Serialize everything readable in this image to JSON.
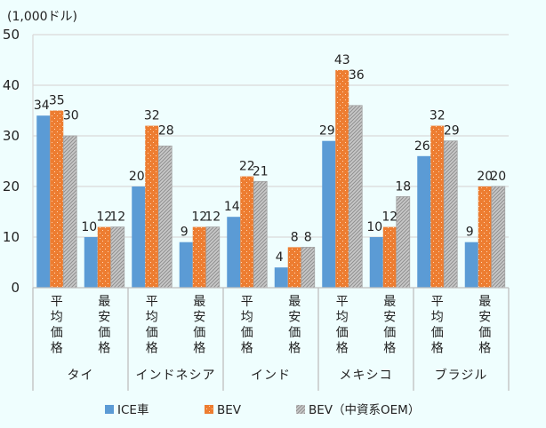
{
  "chart_data": {
    "type": "bar",
    "title": "",
    "unit_label": "(1,000ドル)",
    "xlabel": "",
    "ylabel": "",
    "ylim": [
      0,
      50
    ],
    "yticks": [
      0,
      10,
      20,
      30,
      40,
      50
    ],
    "grid": true,
    "legend_position": "bottom",
    "groups": [
      {
        "name": "タイ",
        "categories": [
          "平均価格",
          "最安価格"
        ]
      },
      {
        "name": "インドネシア",
        "categories": [
          "平均価格",
          "最安価格"
        ]
      },
      {
        "name": "インド",
        "categories": [
          "平均価格",
          "最安価格"
        ]
      },
      {
        "name": "メキシコ",
        "categories": [
          "平均価格",
          "最安価格"
        ]
      },
      {
        "name": "ブラジル",
        "categories": [
          "平均価格",
          "最安価格"
        ]
      }
    ],
    "categories": [
      "タイ 平均価格",
      "タイ 最安価格",
      "インドネシア 平均価格",
      "インドネシア 最安価格",
      "インド 平均価格",
      "インド 最安価格",
      "メキシコ 平均価格",
      "メキシコ 最安価格",
      "ブラジル 平均価格",
      "ブラジル 最安価格"
    ],
    "series": [
      {
        "name": "ICE車",
        "color": "#5b9bd5",
        "pattern": "solid",
        "values": [
          34,
          10,
          20,
          9,
          14,
          4,
          29,
          10,
          26,
          9
        ]
      },
      {
        "name": "BEV",
        "color": "#ed7d31",
        "pattern": "dots",
        "values": [
          35,
          12,
          32,
          12,
          22,
          8,
          43,
          12,
          32,
          20
        ]
      },
      {
        "name": "BEV（中資系OEM）",
        "color": "#a5a5a5",
        "pattern": "diagonal",
        "values": [
          30,
          12,
          28,
          12,
          21,
          8,
          36,
          18,
          29,
          20
        ]
      }
    ]
  }
}
